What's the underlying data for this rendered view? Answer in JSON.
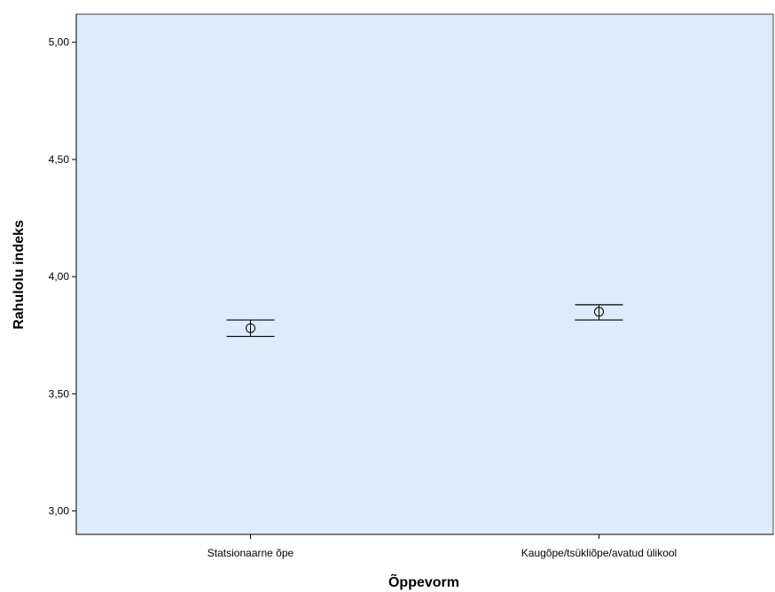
{
  "chart_data": {
    "type": "errorbar",
    "title": "",
    "xlabel": "Õppevorm",
    "ylabel": "Rahulolu indeks",
    "categories": [
      "Statsionaarne õpe",
      "Kaugõpe/tsükliõpe/avatud ülikool"
    ],
    "series": [
      {
        "mean": [
          3.78,
          3.85
        ],
        "lower": [
          3.745,
          3.815
        ],
        "upper": [
          3.815,
          3.88
        ]
      }
    ],
    "ylim": [
      2.9,
      5.12
    ],
    "yticks": [
      3.0,
      3.5,
      4.0,
      4.5,
      5.0
    ],
    "ytick_labels": [
      "3,00",
      "3,50",
      "4,00",
      "4,50",
      "5,00"
    ],
    "grid": false,
    "colors": {
      "plot_background": "#ddecfa",
      "axis": "#000000",
      "marker": "#000000"
    }
  }
}
